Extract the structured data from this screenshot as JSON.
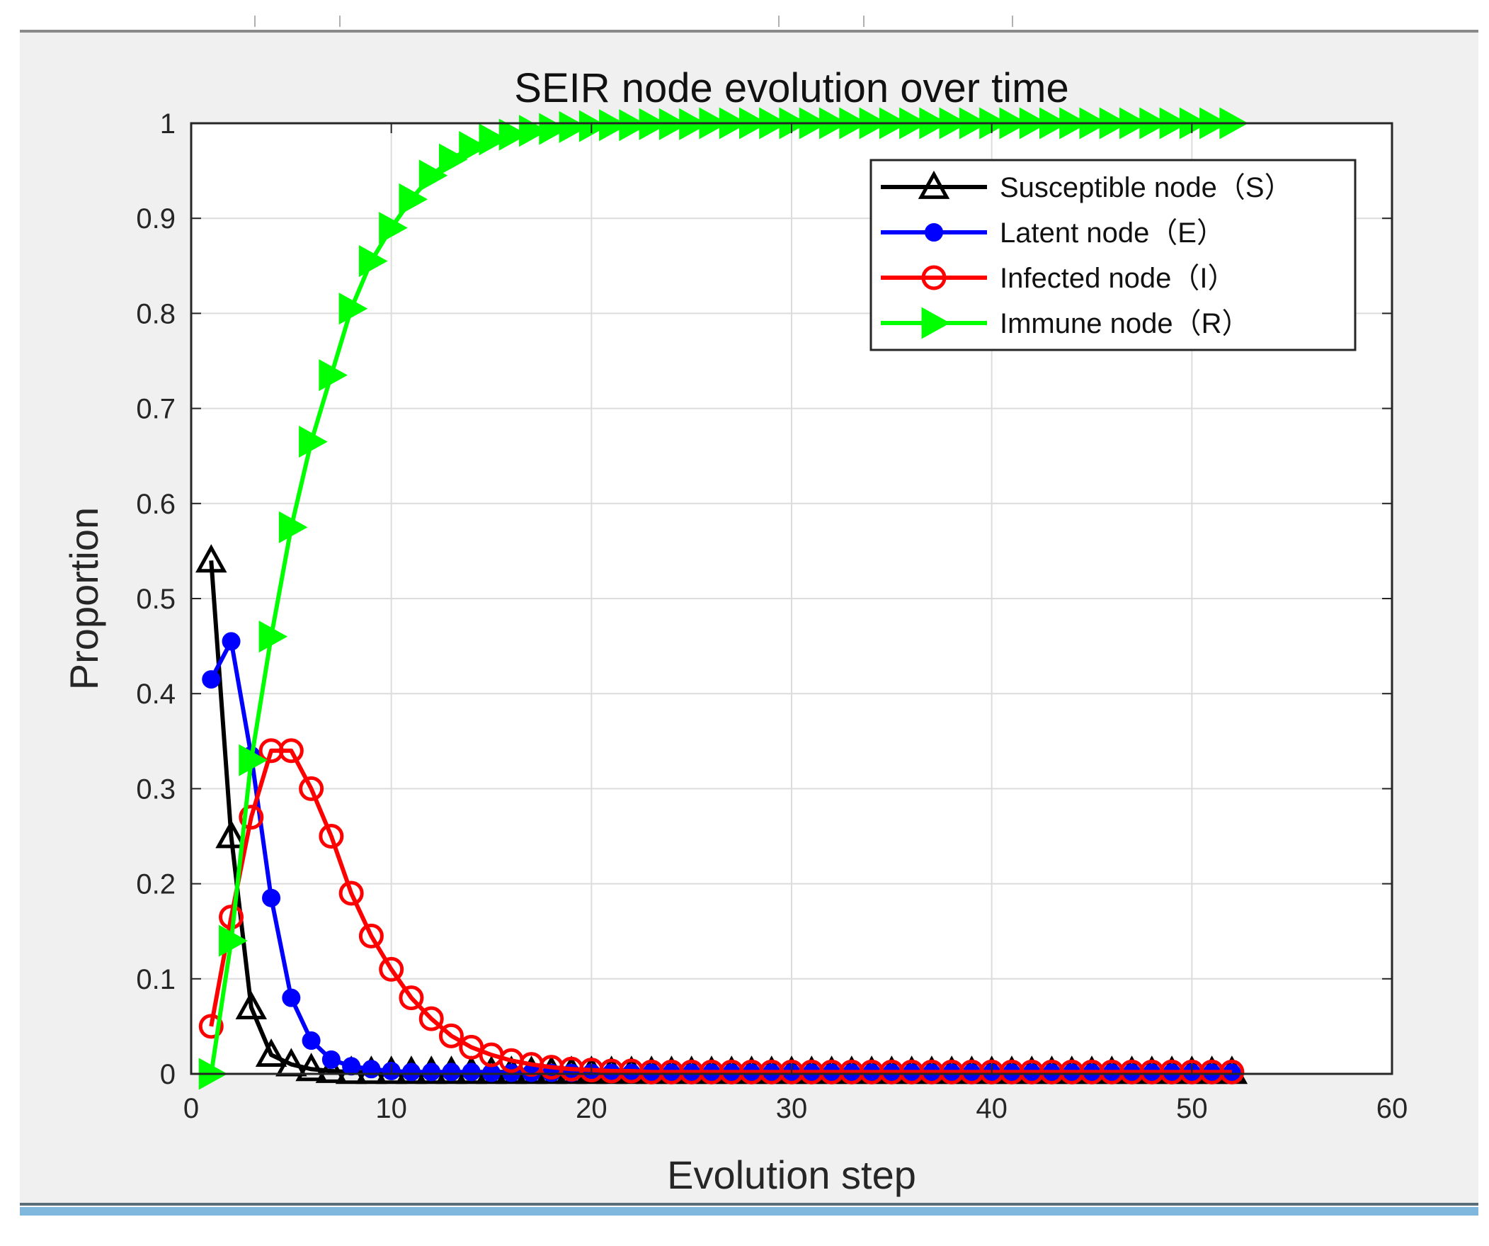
{
  "chart_data": {
    "type": "line",
    "title": "SEIR node evolution over time",
    "xlabel": "Evolution step",
    "ylabel": "Proportion",
    "xlim": [
      0,
      60
    ],
    "ylim": [
      0,
      1
    ],
    "xticks": [
      "0",
      "10",
      "20",
      "30",
      "40",
      "50",
      "60"
    ],
    "yticks": [
      "0",
      "0.1",
      "0.2",
      "0.3",
      "0.4",
      "0.5",
      "0.6",
      "0.7",
      "0.8",
      "0.9",
      "1"
    ],
    "grid": true,
    "legend_position": "top-right",
    "x": [
      1,
      2,
      3,
      4,
      5,
      6,
      7,
      8,
      9,
      10,
      11,
      12,
      13,
      14,
      15,
      16,
      17,
      18,
      19,
      20,
      21,
      22,
      23,
      24,
      25,
      26,
      27,
      28,
      29,
      30,
      31,
      32,
      33,
      34,
      35,
      36,
      37,
      38,
      39,
      40,
      41,
      42,
      43,
      44,
      45,
      46,
      47,
      48,
      49,
      50,
      51,
      52
    ],
    "series": [
      {
        "name": "Susceptible node（S）",
        "color": "#000000",
        "marker": "triangle-up",
        "values": [
          0.54,
          0.25,
          0.07,
          0.02,
          0.01,
          0.005,
          0.003,
          0.002,
          0.002,
          0.002,
          0.002,
          0.002,
          0.002,
          0.002,
          0.002,
          0.002,
          0.002,
          0.002,
          0.002,
          0.002,
          0.002,
          0.002,
          0.002,
          0.002,
          0.002,
          0.002,
          0.002,
          0.002,
          0.002,
          0.002,
          0.002,
          0.002,
          0.002,
          0.002,
          0.002,
          0.002,
          0.002,
          0.002,
          0.002,
          0.002,
          0.002,
          0.002,
          0.002,
          0.002,
          0.002,
          0.002,
          0.002,
          0.002,
          0.002,
          0.002,
          0.002,
          0.002
        ]
      },
      {
        "name": "Latent node（E）",
        "color": "#0000ff",
        "marker": "circle-filled",
        "values": [
          0.415,
          0.455,
          0.335,
          0.185,
          0.08,
          0.035,
          0.015,
          0.008,
          0.005,
          0.003,
          0.002,
          0.002,
          0.002,
          0.002,
          0.001,
          0.001,
          0.001,
          0.001,
          0.001,
          0.001,
          0.001,
          0.001,
          0.001,
          0.001,
          0.001,
          0.001,
          0.001,
          0.001,
          0.001,
          0.001,
          0.001,
          0.001,
          0.001,
          0.001,
          0.001,
          0.001,
          0.001,
          0.001,
          0.001,
          0.001,
          0.001,
          0.001,
          0.001,
          0.001,
          0.001,
          0.001,
          0.001,
          0.001,
          0.001,
          0.001,
          0.001,
          0.001
        ]
      },
      {
        "name": "Infected node（I）",
        "color": "#ff0000",
        "marker": "circle-open",
        "values": [
          0.05,
          0.165,
          0.27,
          0.34,
          0.34,
          0.3,
          0.25,
          0.19,
          0.145,
          0.11,
          0.08,
          0.058,
          0.04,
          0.028,
          0.02,
          0.014,
          0.01,
          0.007,
          0.005,
          0.004,
          0.003,
          0.003,
          0.002,
          0.002,
          0.002,
          0.002,
          0.002,
          0.002,
          0.002,
          0.002,
          0.002,
          0.002,
          0.002,
          0.002,
          0.002,
          0.002,
          0.002,
          0.002,
          0.002,
          0.002,
          0.002,
          0.002,
          0.002,
          0.002,
          0.002,
          0.002,
          0.002,
          0.002,
          0.002,
          0.002,
          0.002,
          0.002
        ]
      },
      {
        "name": "Immune node（R）",
        "color": "#00ff00",
        "marker": "triangle-right",
        "values": [
          0.0,
          0.14,
          0.33,
          0.46,
          0.575,
          0.665,
          0.735,
          0.805,
          0.855,
          0.89,
          0.92,
          0.945,
          0.962,
          0.975,
          0.983,
          0.988,
          0.992,
          0.994,
          0.996,
          0.997,
          0.998,
          0.998,
          0.999,
          0.999,
          0.999,
          1.0,
          1.0,
          1.0,
          1.0,
          1.0,
          1.0,
          1.0,
          1.0,
          1.0,
          1.0,
          1.0,
          1.0,
          1.0,
          1.0,
          1.0,
          1.0,
          1.0,
          1.0,
          1.0,
          1.0,
          1.0,
          1.0,
          1.0,
          1.0,
          1.0,
          1.0,
          1.0
        ]
      }
    ]
  }
}
